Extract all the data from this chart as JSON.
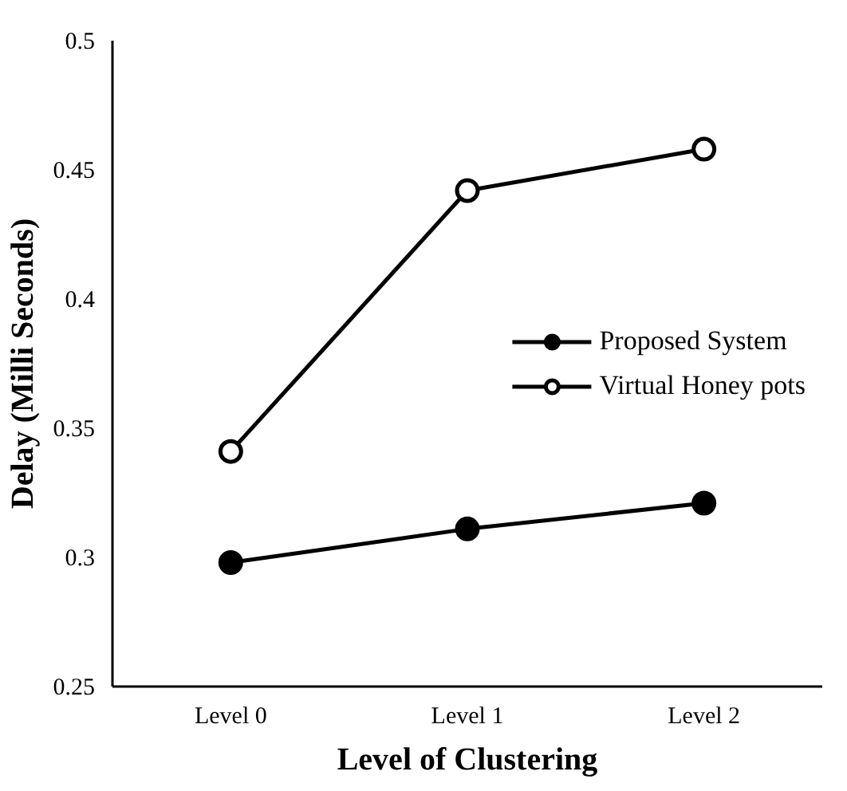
{
  "chart_data": {
    "type": "line",
    "xlabel": "Level of Clustering",
    "ylabel": "Delay (Milli Seconds)",
    "categories": [
      "Level 0",
      "Level 1",
      "Level 2"
    ],
    "series": [
      {
        "name": "Proposed System",
        "color": "#000000",
        "values": [
          0.298,
          0.311,
          0.321
        ],
        "marker": "circle"
      },
      {
        "name": "Virtual Honey pots",
        "color": "#000000",
        "values": [
          0.341,
          0.442,
          0.458
        ],
        "marker": "circle"
      }
    ],
    "ylim": [
      0.25,
      0.5
    ],
    "yticks": [
      0.25,
      0.3,
      0.35,
      0.4,
      0.45,
      0.5
    ],
    "grid": false,
    "legend": "right",
    "line_style": "solid"
  }
}
